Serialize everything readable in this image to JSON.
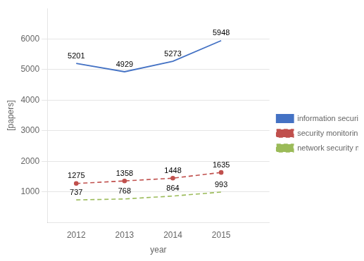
{
  "chart_data": {
    "type": "line",
    "xlabel": "year",
    "ylabel": "[papers]",
    "x": [
      2012,
      2013,
      2014,
      2015
    ],
    "series": [
      {
        "name": "information security",
        "color": "#4472C4",
        "values": [
          5201,
          4929,
          5273,
          5948
        ],
        "line_style": "solid"
      },
      {
        "name": "security monitoring",
        "color": "#C0504D",
        "values": [
          1275,
          1358,
          1448,
          1635
        ],
        "line_style": "dashed",
        "marker": "point"
      },
      {
        "name": "network security monitoring",
        "color": "#9BBB59",
        "values": [
          737,
          768,
          864,
          993
        ],
        "line_style": "dashed"
      }
    ],
    "xlim": [
      2011.4,
      2016.0
    ],
    "xticks": [
      2012,
      2013,
      2014,
      2015
    ],
    "ylim": [
      0,
      7000
    ],
    "yticks": [
      1000,
      2000,
      3000,
      4000,
      5000,
      6000
    ],
    "grid": "y",
    "legend": "right",
    "data_labels": true
  }
}
